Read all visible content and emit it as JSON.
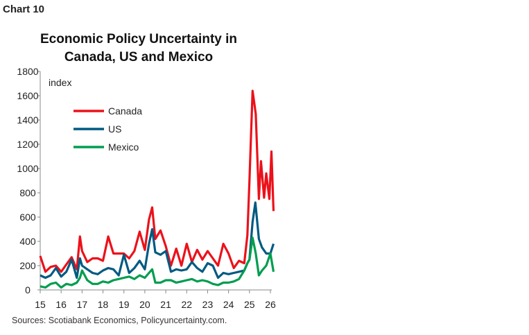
{
  "header": {
    "chart_label": "Chart 10"
  },
  "footer": {
    "source": "Sources: Scotiabank Economics, Policyuncertainty.com."
  },
  "chart_data": {
    "type": "line",
    "title": "Economic Policy Uncertainty in Canada, US and Mexico",
    "title_lines": [
      "Economic Policy Uncertainty in",
      "Canada, US and Mexico"
    ],
    "ylabel": "index",
    "xlabel": "",
    "ylim": [
      0,
      1800
    ],
    "yticks": [
      0,
      200,
      400,
      600,
      800,
      1000,
      1200,
      1400,
      1600,
      1800
    ],
    "xlim": [
      15,
      26.2
    ],
    "xticks": [
      "15",
      "16",
      "17",
      "18",
      "19",
      "20",
      "21",
      "22",
      "23",
      "24",
      "25",
      "26"
    ],
    "grid": false,
    "legend": "top-left",
    "series": [
      {
        "name": "Canada",
        "color": "#ec111a",
        "x": [
          15.0,
          15.25,
          15.5,
          15.75,
          16.0,
          16.25,
          16.5,
          16.75,
          16.9,
          17.0,
          17.25,
          17.5,
          17.75,
          18.0,
          18.25,
          18.5,
          18.75,
          19.0,
          19.25,
          19.5,
          19.75,
          20.0,
          20.2,
          20.35,
          20.5,
          20.75,
          21.0,
          21.25,
          21.5,
          21.75,
          22.0,
          22.25,
          22.5,
          22.75,
          23.0,
          23.25,
          23.5,
          23.75,
          24.0,
          24.25,
          24.5,
          24.75,
          24.9,
          25.0,
          25.15,
          25.3,
          25.45,
          25.55,
          25.7,
          25.8,
          25.95,
          26.05,
          26.15
        ],
        "values": [
          280,
          150,
          190,
          200,
          150,
          210,
          270,
          170,
          440,
          320,
          230,
          260,
          260,
          240,
          440,
          300,
          300,
          300,
          260,
          320,
          480,
          330,
          580,
          680,
          420,
          490,
          360,
          200,
          340,
          200,
          380,
          230,
          330,
          250,
          320,
          260,
          200,
          380,
          300,
          180,
          240,
          220,
          450,
          900,
          1640,
          1450,
          750,
          1060,
          760,
          960,
          750,
          1140,
          650
        ]
      },
      {
        "name": "US",
        "color": "#005a82",
        "x": [
          15.0,
          15.25,
          15.5,
          15.75,
          16.0,
          16.25,
          16.5,
          16.75,
          16.9,
          17.0,
          17.25,
          17.5,
          17.75,
          18.0,
          18.25,
          18.5,
          18.75,
          19.0,
          19.25,
          19.5,
          19.75,
          20.0,
          20.2,
          20.35,
          20.5,
          20.75,
          21.0,
          21.25,
          21.5,
          21.75,
          22.0,
          22.25,
          22.5,
          22.75,
          23.0,
          23.25,
          23.5,
          23.75,
          24.0,
          24.25,
          24.5,
          24.75,
          24.9,
          25.0,
          25.15,
          25.28,
          25.45,
          25.6,
          25.8,
          26.0,
          26.15
        ],
        "values": [
          120,
          100,
          120,
          180,
          110,
          150,
          250,
          100,
          260,
          200,
          170,
          140,
          130,
          160,
          180,
          170,
          120,
          290,
          140,
          180,
          240,
          170,
          380,
          500,
          310,
          290,
          320,
          150,
          170,
          160,
          170,
          230,
          180,
          150,
          220,
          200,
          100,
          140,
          130,
          140,
          150,
          160,
          220,
          250,
          560,
          720,
          420,
          350,
          300,
          300,
          380
        ]
      },
      {
        "name": "Mexico",
        "color": "#009d4f",
        "x": [
          15.0,
          15.25,
          15.5,
          15.75,
          16.0,
          16.25,
          16.5,
          16.75,
          16.9,
          17.0,
          17.25,
          17.5,
          17.75,
          18.0,
          18.25,
          18.5,
          18.75,
          19.0,
          19.25,
          19.5,
          19.75,
          20.0,
          20.2,
          20.35,
          20.5,
          20.75,
          21.0,
          21.25,
          21.5,
          21.75,
          22.0,
          22.25,
          22.5,
          22.75,
          23.0,
          23.25,
          23.5,
          23.75,
          24.0,
          24.25,
          24.5,
          24.75,
          24.9,
          25.0,
          25.15,
          25.3,
          25.45,
          25.6,
          25.8,
          26.0,
          26.15
        ],
        "values": [
          30,
          20,
          50,
          60,
          20,
          50,
          40,
          60,
          100,
          160,
          80,
          50,
          50,
          70,
          60,
          80,
          90,
          100,
          110,
          90,
          120,
          100,
          140,
          170,
          60,
          60,
          80,
          80,
          60,
          70,
          80,
          90,
          70,
          80,
          70,
          50,
          40,
          60,
          60,
          70,
          90,
          160,
          220,
          250,
          430,
          300,
          120,
          160,
          200,
          300,
          150
        ]
      }
    ]
  }
}
